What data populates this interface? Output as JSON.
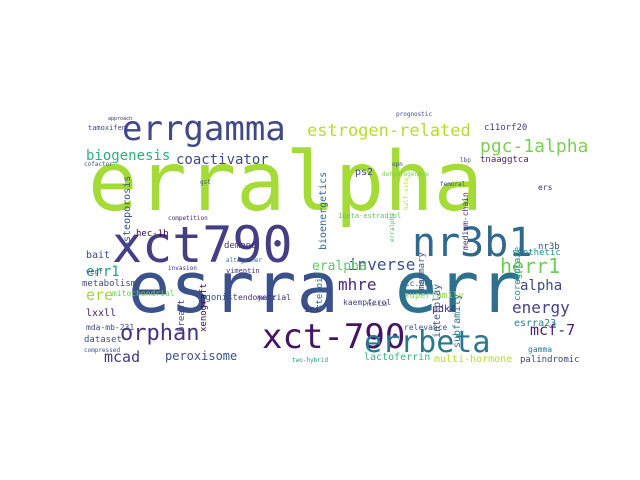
{
  "words": [
    {
      "text": "erralpha",
      "color": "#a5db36"
    },
    {
      "text": "esrra",
      "color": "#3b518b"
    },
    {
      "text": "err",
      "color": "#2c728e"
    },
    {
      "text": "xct790",
      "color": "#433e85"
    },
    {
      "text": "nr3b1",
      "color": "#31688e"
    },
    {
      "text": "errgamma",
      "color": "#3f4889"
    },
    {
      "text": "xct-790",
      "color": "#471365"
    },
    {
      "text": "errbeta",
      "color": "#2a788e"
    },
    {
      "text": "estrogen-related",
      "color": "#b5de2b"
    },
    {
      "text": "pgc-1alpha",
      "color": "#7ad151"
    },
    {
      "text": "coactivator",
      "color": "#3e4a89"
    },
    {
      "text": "biogenesis",
      "color": "#2ab07f"
    },
    {
      "text": "orphan",
      "color": "#46327e"
    },
    {
      "text": "inverse",
      "color": "#3b528b"
    },
    {
      "text": "mhre",
      "color": "#482878"
    },
    {
      "text": "herr1",
      "color": "#6ece58"
    },
    {
      "text": "err1",
      "color": "#1f9e89"
    },
    {
      "text": "eralpha",
      "color": "#5ec962"
    },
    {
      "text": "alpha",
      "color": "#3e4989"
    },
    {
      "text": "energy",
      "color": "#424086"
    },
    {
      "text": "ere",
      "color": "#9fda3a"
    },
    {
      "text": "mcad",
      "color": "#443983"
    },
    {
      "text": "mcf-7",
      "color": "#481f70"
    },
    {
      "text": "peroxisome",
      "color": "#3b528b"
    },
    {
      "text": "lactoferrin",
      "color": "#35b779"
    },
    {
      "text": "multi-hormone",
      "color": "#b5de2b"
    },
    {
      "text": "palindromic",
      "color": "#414487"
    },
    {
      "text": "osteoporosis",
      "color": "#3b528b"
    },
    {
      "text": "bioenergetics",
      "color": "#31688e"
    },
    {
      "text": "c11orf20",
      "color": "#443a83"
    },
    {
      "text": "tnaaggtca",
      "color": "#482575"
    },
    {
      "text": "hec-1b",
      "color": "#440154"
    },
    {
      "text": "ps2",
      "color": "#3e4c8a"
    },
    {
      "text": "mitochondrial",
      "color": "#6ccd5a"
    },
    {
      "text": "agonist",
      "color": "#3b528b"
    },
    {
      "text": "endometrial",
      "color": "#472d7b"
    },
    {
      "text": "superfamily",
      "color": "#90d743"
    },
    {
      "text": "synthetic",
      "color": "#21918c"
    },
    {
      "text": "esrra23",
      "color": "#26828e"
    },
    {
      "text": "lxxll",
      "color": "#481a6c"
    },
    {
      "text": "mda-mb-231",
      "color": "#3e4a89"
    },
    {
      "text": "pdk4",
      "color": "#472c7a"
    },
    {
      "text": "interplay",
      "color": "#38588c"
    },
    {
      "text": "xtc.uc1",
      "color": "#3b528b"
    },
    {
      "text": "demand",
      "color": "#46327e"
    },
    {
      "text": "competition",
      "color": "#482173"
    },
    {
      "text": "altogether",
      "color": "#31688e"
    },
    {
      "text": "breast",
      "color": "#3e4989"
    },
    {
      "text": "xenograft",
      "color": "#440154"
    },
    {
      "text": "invasion",
      "color": "#482878"
    },
    {
      "text": "steroid",
      "color": "#2c728e"
    },
    {
      "text": "relevance",
      "color": "#3b528b"
    },
    {
      "text": "coregulate",
      "color": "#21918c"
    },
    {
      "text": "gamma",
      "color": "#2a788e"
    },
    {
      "text": "nr3b",
      "color": "#3e4989"
    },
    {
      "text": "ers",
      "color": "#472d7b"
    },
    {
      "text": "medium-chain",
      "color": "#46337f"
    },
    {
      "text": "mammary",
      "color": "#3b528b"
    },
    {
      "text": "kaempferol",
      "color": "#3e4c8a"
    },
    {
      "text": "subfamily",
      "color": "#2a788e"
    },
    {
      "text": "bait",
      "color": "#3e4a89"
    },
    {
      "text": "vegf",
      "color": "#3b528b"
    },
    {
      "text": "metabolism",
      "color": "#3e4989"
    },
    {
      "text": "ici",
      "color": "#472c7a"
    },
    {
      "text": "dataset",
      "color": "#3b528b"
    },
    {
      "text": "tamoxifen",
      "color": "#3e4a89"
    },
    {
      "text": "cofactor",
      "color": "#3b528b"
    },
    {
      "text": "approach",
      "color": "#482475"
    },
    {
      "text": "prognostic",
      "color": "#3e4c8a"
    },
    {
      "text": "femoral",
      "color": "#3b528b"
    },
    {
      "text": "vimentin",
      "color": "#46337f"
    },
    {
      "text": "opn",
      "color": "#3e4989"
    },
    {
      "text": "dehydrogenase",
      "color": "#7ad151"
    },
    {
      "text": "half-site",
      "color": "#c2df23"
    },
    {
      "text": "1beta-estradiol",
      "color": "#5ec962"
    },
    {
      "text": "erralpha",
      "color": "#4ac16d"
    },
    {
      "text": "two-hybrid",
      "color": "#1fa187"
    },
    {
      "text": "compressed",
      "color": "#3b528b"
    },
    {
      "text": "yeast",
      "color": "#3e4989"
    },
    {
      "text": "lbp",
      "color": "#3b528b"
    },
    {
      "text": "gst",
      "color": "#3e4c8a"
    },
    {
      "text": "ftc-133",
      "color": "#482173"
    },
    {
      "text": "rgl8",
      "color": "#3b528b"
    }
  ]
}
